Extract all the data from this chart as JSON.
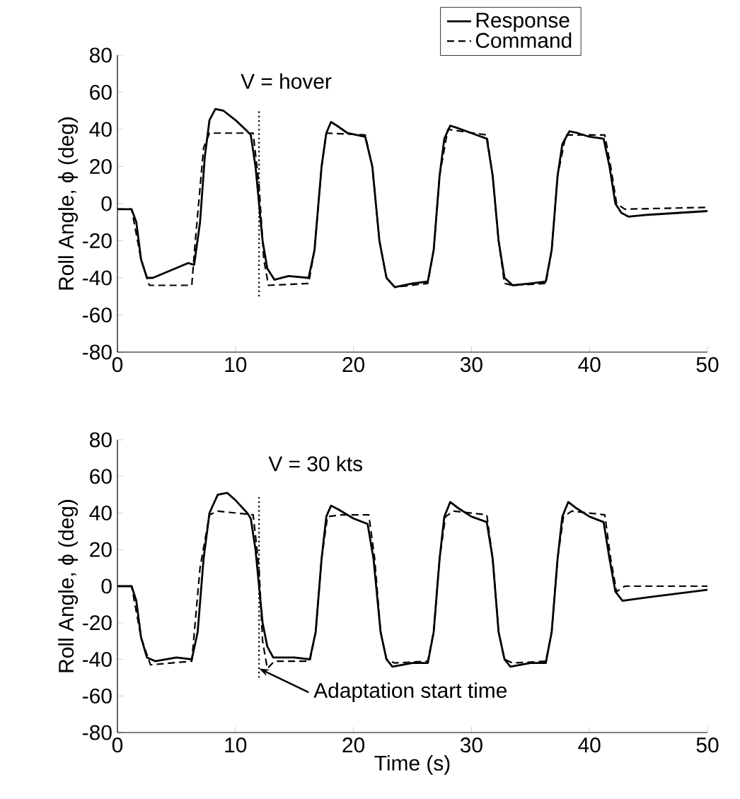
{
  "chart_data": [
    {
      "type": "line",
      "ylabel": "Roll Angle, ϕ (deg)",
      "annotations": [
        "V = hover"
      ],
      "xlim": [
        0,
        50
      ],
      "xticks": [
        0,
        10,
        20,
        30,
        40,
        50
      ],
      "ylim": [
        -80,
        80
      ],
      "yticks": [
        -80,
        -60,
        -40,
        -20,
        0,
        20,
        40,
        60,
        80
      ],
      "legend": "top right",
      "grid": false,
      "series": [
        {
          "name": "Response",
          "color": "#000000",
          "line_style": "solid",
          "x": [
            0,
            1.2,
            1.6,
            2,
            2.5,
            3,
            4.5,
            6,
            6.5,
            7,
            7.4,
            7.8,
            8.3,
            9,
            10,
            11,
            11.3,
            11.7,
            12.3,
            12.7,
            13.3,
            14.5,
            16.2,
            16.7,
            17.3,
            17.7,
            18.1,
            18.6,
            19.5,
            21,
            21.6,
            22.2,
            22.8,
            23.5,
            25,
            26.3,
            26.8,
            27.3,
            27.7,
            28.2,
            28.7,
            30,
            31.3,
            31.8,
            32.3,
            32.8,
            33.5,
            35,
            36.3,
            36.8,
            37.3,
            37.7,
            38.3,
            39,
            40,
            41.2,
            41.7,
            42.2,
            42.7,
            43.3,
            45,
            50
          ],
          "values": [
            -3,
            -3,
            -10,
            -30,
            -40,
            -40,
            -36,
            -32,
            -33,
            -10,
            25,
            45,
            51,
            50,
            45,
            39,
            37,
            20,
            -20,
            -35,
            -41,
            -39,
            -40,
            -25,
            20,
            38,
            44,
            42,
            38,
            36,
            20,
            -20,
            -40,
            -45,
            -43,
            -42,
            -25,
            15,
            35,
            42,
            41,
            38,
            35,
            15,
            -20,
            -40,
            -44,
            -43,
            -42,
            -25,
            15,
            32,
            39,
            38,
            36,
            35,
            20,
            0,
            -5,
            -7,
            -6,
            -4
          ]
        },
        {
          "name": "Command",
          "color": "#000000",
          "line_style": "dashed",
          "x": [
            0,
            1.2,
            2,
            2.7,
            6.3,
            6.6,
            7.3,
            7.8,
            11.5,
            12,
            12.4,
            12.8,
            16.2,
            16.7,
            17.3,
            17.7,
            21,
            21.6,
            22.2,
            22.8,
            23.5,
            26.3,
            26.8,
            27.3,
            28,
            31.3,
            31.8,
            32.3,
            32.8,
            33.5,
            36.3,
            36.8,
            37.3,
            38,
            41.3,
            41.8,
            42.3,
            43,
            50
          ],
          "values": [
            -3,
            -3,
            -30,
            -44,
            -44,
            -20,
            30,
            38,
            38,
            10,
            -30,
            -44,
            -43,
            -25,
            20,
            38,
            37,
            20,
            -20,
            -40,
            -45,
            -43,
            -25,
            15,
            40,
            37,
            15,
            -20,
            -43,
            -44,
            -43,
            -25,
            15,
            37,
            37,
            20,
            0,
            -3,
            -2
          ]
        },
        {
          "color": "#000000",
          "line_style": "dotted",
          "x": [
            12,
            12
          ],
          "values": [
            -50,
            50
          ]
        }
      ]
    },
    {
      "type": "line",
      "xlabel": "Time (s)",
      "ylabel": "Roll Angle, ϕ (deg)",
      "annotations": [
        "V = 30 kts",
        {
          "text": "Adaptation start time",
          "x": 12,
          "y": -45
        }
      ],
      "xlim": [
        0,
        50
      ],
      "xticks": [
        0,
        10,
        20,
        30,
        40,
        50
      ],
      "ylim": [
        -80,
        80
      ],
      "yticks": [
        -80,
        -60,
        -40,
        -20,
        0,
        20,
        40,
        60,
        80
      ],
      "grid": false,
      "series": [
        {
          "color": "#000000",
          "line_style": "solid",
          "x": [
            0,
            1.2,
            1.6,
            2,
            2.5,
            3.2,
            5,
            6.3,
            6.8,
            7.3,
            7.8,
            8.5,
            9.3,
            10,
            11,
            11.3,
            11.7,
            12.3,
            12.7,
            13.2,
            15,
            16.3,
            16.8,
            17.3,
            17.7,
            18.1,
            18.7,
            20,
            21.2,
            21.7,
            22.3,
            22.8,
            23.3,
            25,
            26.3,
            26.8,
            27.3,
            27.7,
            28.2,
            28.8,
            30,
            31.3,
            31.8,
            32.3,
            32.8,
            33.3,
            35,
            36.3,
            36.8,
            37.3,
            37.7,
            38.2,
            38.8,
            40,
            41.2,
            41.7,
            42.2,
            42.8,
            45,
            50
          ],
          "values": [
            0,
            0,
            -8,
            -28,
            -39,
            -41,
            -39,
            -40,
            -25,
            15,
            40,
            50,
            51,
            47,
            40,
            37,
            20,
            -20,
            -33,
            -39,
            -39,
            -40,
            -25,
            15,
            38,
            44,
            42,
            37,
            34,
            15,
            -25,
            -40,
            -44,
            -42,
            -42,
            -25,
            15,
            38,
            46,
            43,
            38,
            35,
            15,
            -25,
            -40,
            -44,
            -42,
            -42,
            -25,
            15,
            38,
            46,
            43,
            38,
            35,
            15,
            -3,
            -8,
            -6,
            -2
          ]
        },
        {
          "color": "#000000",
          "line_style": "dashed",
          "x": [
            0,
            1.2,
            2,
            2.8,
            6.3,
            7,
            7.8,
            8.5,
            11.5,
            12,
            12.3,
            12.7,
            13.3,
            16.3,
            16.8,
            17.3,
            17.8,
            19,
            21.3,
            21.8,
            22.3,
            22.8,
            23.5,
            26.3,
            26.8,
            27.3,
            27.8,
            28.5,
            31.3,
            31.8,
            32.3,
            32.8,
            33.5,
            36.3,
            36.8,
            37.3,
            37.8,
            38.5,
            41.3,
            41.8,
            42.3,
            43,
            50
          ],
          "values": [
            0,
            0,
            -28,
            -43,
            -41,
            10,
            39,
            41,
            39,
            10,
            -30,
            -45,
            -41,
            -41,
            -25,
            15,
            38,
            39,
            39,
            15,
            -25,
            -40,
            -42,
            -41,
            -25,
            15,
            38,
            41,
            39,
            15,
            -25,
            -40,
            -42,
            -41,
            -25,
            15,
            38,
            41,
            39,
            15,
            -3,
            0,
            0
          ]
        },
        {
          "color": "#000000",
          "line_style": "dotted",
          "x": [
            12,
            12
          ],
          "values": [
            -50,
            50
          ]
        }
      ]
    }
  ]
}
